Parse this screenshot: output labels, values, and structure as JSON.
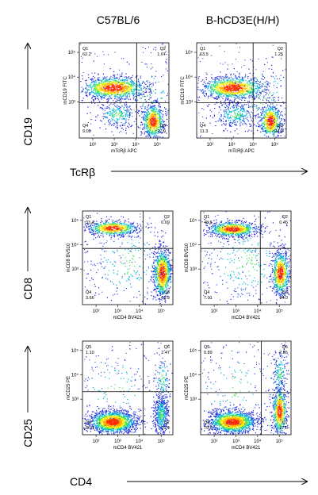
{
  "figure": {
    "columns": [
      "C57BL/6",
      "B-hCD3E(H/H)"
    ],
    "row_arrow_labels": [
      "CD19",
      "CD8",
      "CD25"
    ],
    "bottom_arrow_labels": [
      "TcRβ",
      "CD4"
    ]
  },
  "chart_data": [
    {
      "type": "scatter",
      "strain": "C57BL/6",
      "xlabel": "mTcRβ APC",
      "ylabel": "mCD19 FITC",
      "x_ticks": [
        "10²",
        "10³",
        "10⁴",
        "10⁵"
      ],
      "y_ticks": [
        "10³",
        "10⁴",
        "10⁵"
      ],
      "quadrants": {
        "Q1": "62.2",
        "Q2": "1.67",
        "Q3": "27.0",
        "Q4": "9.09"
      },
      "quadrant_labels": [
        "Q1",
        "Q2",
        "Q3",
        "Q4"
      ]
    },
    {
      "type": "scatter",
      "strain": "B-hCD3E(H/H)",
      "xlabel": "mTcRβ APC",
      "ylabel": "mCD19 FITC",
      "x_ticks": [
        "10²",
        "10³",
        "10⁴",
        "10⁵"
      ],
      "y_ticks": [
        "10³",
        "10⁴",
        "10⁵"
      ],
      "quadrants": {
        "Q1": "63.5",
        "Q2": "1.25",
        "Q3": "24.0",
        "Q4": "11.3"
      },
      "quadrant_labels": [
        "Q1",
        "Q2",
        "Q3",
        "Q4"
      ]
    },
    {
      "type": "scatter",
      "strain": "C57BL/6",
      "xlabel": "mCD4 BV421",
      "ylabel": "mCD8 BV510",
      "x_ticks": [
        "10²",
        "10³",
        "10⁴",
        "10⁵"
      ],
      "y_ticks": [
        "10³",
        "10⁴",
        "10⁵"
      ],
      "quadrants": {
        "Q1": "33.4",
        "Q2": "0.69",
        "Q3": "62.3",
        "Q4": "3.66"
      },
      "quadrant_labels": [
        "Q1",
        "Q2",
        "Q3",
        "Q4"
      ]
    },
    {
      "type": "scatter",
      "strain": "B-hCD3E(H/H)",
      "xlabel": "mCD4 BV421",
      "ylabel": "mCD8 BV510",
      "x_ticks": [
        "10²",
        "10³",
        "10⁴",
        "10⁵"
      ],
      "y_ticks": [
        "10³",
        "10⁴",
        "10⁵"
      ],
      "quadrants": {
        "Q1": "48.6",
        "Q2": "0.45",
        "Q3": "44.0",
        "Q4": "7.01"
      },
      "quadrant_labels": [
        "Q1",
        "Q2",
        "Q3",
        "Q4"
      ]
    },
    {
      "type": "scatter",
      "strain": "C57BL/6",
      "xlabel": "mCD4 BV421",
      "ylabel": "mCD25 PE",
      "x_ticks": [
        "10²",
        "10³",
        "10⁴",
        "10⁵"
      ],
      "y_ticks": [
        "10³",
        "10⁴",
        "10⁵"
      ],
      "quadrants": {
        "Q1": "1.10",
        "Q2": "2.47",
        "Q3": "10.4",
        "Q4": "86.1"
      },
      "quadrant_labels": [
        "Q5",
        "Q6",
        "Q7",
        "Q8"
      ]
    },
    {
      "type": "scatter",
      "strain": "B-hCD3E(H/H)",
      "xlabel": "mCD4 BV421",
      "ylabel": "mCD25 PE",
      "x_ticks": [
        "10²",
        "10³",
        "10⁴",
        "10⁵"
      ],
      "y_ticks": [
        "10³",
        "10⁴",
        "10⁵"
      ],
      "quadrants": {
        "Q1": "0.89",
        "Q2": "2.55",
        "Q3": "17.0",
        "Q4": "79.6"
      },
      "quadrant_labels": [
        "Q5",
        "Q6",
        "Q7",
        "Q8"
      ]
    }
  ]
}
